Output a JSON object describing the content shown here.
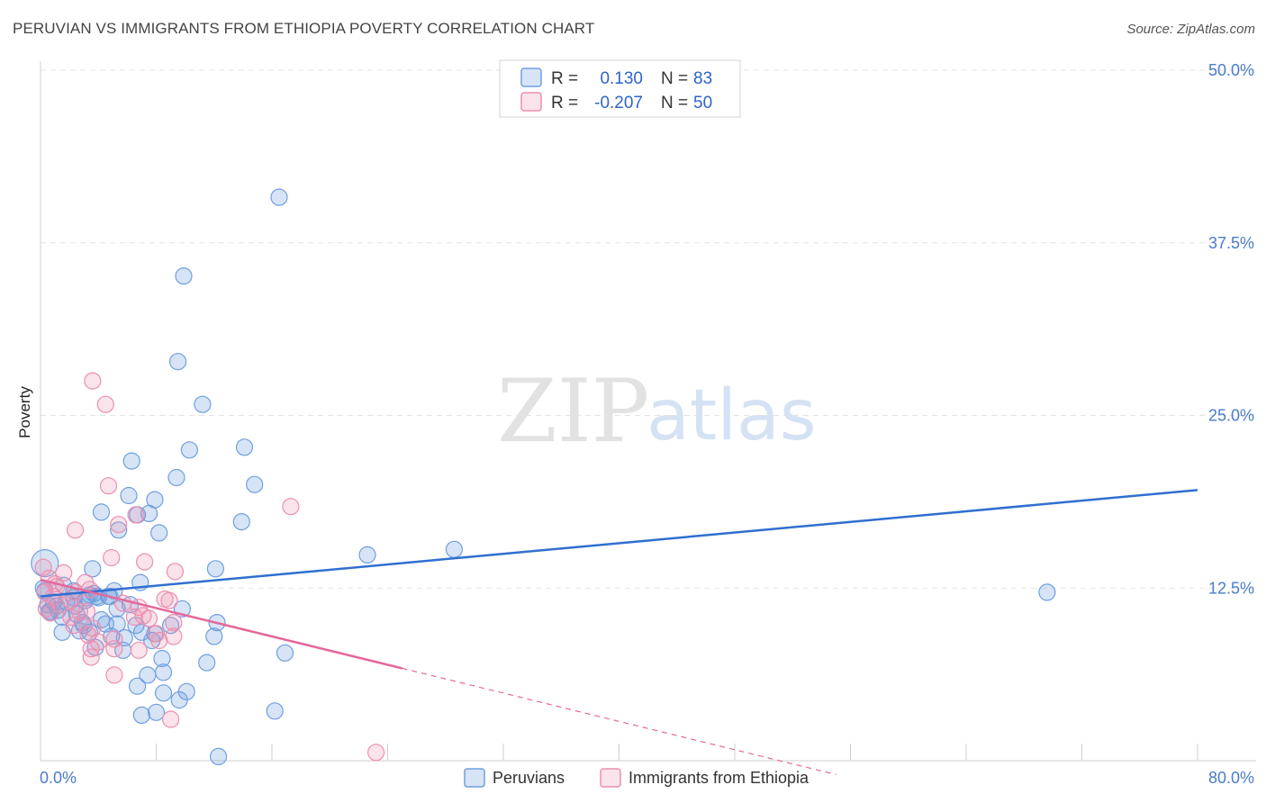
{
  "title": "PERUVIAN VS IMMIGRANTS FROM ETHIOPIA POVERTY CORRELATION CHART",
  "source": "Source: ZipAtlas.com",
  "watermark": {
    "part1": "ZIP",
    "part2": "atlas"
  },
  "colors": {
    "blue": "#6e9fe0",
    "blue_fill": "rgba(110,159,224,0.28)",
    "blue_line": "#2f6fd0",
    "pink": "#ec8fb0",
    "pink_fill": "rgba(236,143,176,0.25)",
    "pink_line": "#e5679a",
    "tick": "#4a7cc9",
    "grid": "#e3e3e3"
  },
  "legend": {
    "rows": [
      {
        "r_label": "R =",
        "r_value": "0.130",
        "n_label": "N =",
        "n_value": "83"
      },
      {
        "r_label": "R =",
        "r_value": "-0.207",
        "n_label": "N =",
        "n_value": "50"
      }
    ]
  },
  "bottom_legend": [
    "Peruvians",
    "Immigrants from Ethiopia"
  ],
  "chart_data": {
    "type": "scatter",
    "title": "PERUVIAN VS IMMIGRANTS FROM ETHIOPIA POVERTY CORRELATION CHART",
    "xlabel": "",
    "ylabel": "Poverty",
    "xlim": [
      0,
      80
    ],
    "ylim": [
      0,
      50
    ],
    "x_tick_labels": [
      "0.0%",
      "80.0%"
    ],
    "y_ticks": [
      12.5,
      25.0,
      37.5,
      50.0
    ],
    "y_tick_labels": [
      "12.5%",
      "25.0%",
      "37.5%",
      "50.0%"
    ],
    "grid": true,
    "series": [
      {
        "name": "Peruvians",
        "r": 0.13,
        "n": 83,
        "trend": {
          "x": [
            0,
            80
          ],
          "y": [
            11.9,
            19.6
          ],
          "dashed_from": null
        },
        "points": [
          [
            16.5,
            40.8
          ],
          [
            9.9,
            35.1
          ],
          [
            9.5,
            28.9
          ],
          [
            11.2,
            25.8
          ],
          [
            10.3,
            22.5
          ],
          [
            14.1,
            22.7
          ],
          [
            6.3,
            21.7
          ],
          [
            9.4,
            20.5
          ],
          [
            14.8,
            20.0
          ],
          [
            6.1,
            19.2
          ],
          [
            7.9,
            18.9
          ],
          [
            4.2,
            18.0
          ],
          [
            7.5,
            17.9
          ],
          [
            6.7,
            17.8
          ],
          [
            13.9,
            17.3
          ],
          [
            8.2,
            16.5
          ],
          [
            5.4,
            16.7
          ],
          [
            28.6,
            15.3
          ],
          [
            22.6,
            14.9
          ],
          [
            12.1,
            13.9
          ],
          [
            3.6,
            13.9
          ],
          [
            6.9,
            12.9
          ],
          [
            1.6,
            12.7
          ],
          [
            5.1,
            12.3
          ],
          [
            3.7,
            12.1
          ],
          [
            4.8,
            11.9
          ],
          [
            2.3,
            11.8
          ],
          [
            3.1,
            11.6
          ],
          [
            0.9,
            11.5
          ],
          [
            1.8,
            11.5
          ],
          [
            0.5,
            11.3
          ],
          [
            2.4,
            11.2
          ],
          [
            1.2,
            10.9
          ],
          [
            0.7,
            10.8
          ],
          [
            2.5,
            10.6
          ],
          [
            1.5,
            10.4
          ],
          [
            0.6,
            10.8
          ],
          [
            4.0,
            11.8
          ],
          [
            4.7,
            11.9
          ],
          [
            3.9,
            11.9
          ],
          [
            3.2,
            11.8
          ],
          [
            5.3,
            11.0
          ],
          [
            9.8,
            11.0
          ],
          [
            4.2,
            10.2
          ],
          [
            5.3,
            9.9
          ],
          [
            9.0,
            9.8
          ],
          [
            6.6,
            9.8
          ],
          [
            4.5,
            9.9
          ],
          [
            3.0,
            9.8
          ],
          [
            12.2,
            10.0
          ],
          [
            1.5,
            9.3
          ],
          [
            3.4,
            9.3
          ],
          [
            7.0,
            9.3
          ],
          [
            7.9,
            9.2
          ],
          [
            4.9,
            9.0
          ],
          [
            12.0,
            9.0
          ],
          [
            7.7,
            8.7
          ],
          [
            5.8,
            8.9
          ],
          [
            3.8,
            8.2
          ],
          [
            5.7,
            8.0
          ],
          [
            16.9,
            7.8
          ],
          [
            8.4,
            7.4
          ],
          [
            11.5,
            7.1
          ],
          [
            8.5,
            6.4
          ],
          [
            7.4,
            6.2
          ],
          [
            6.7,
            5.4
          ],
          [
            10.1,
            5.0
          ],
          [
            8.5,
            4.9
          ],
          [
            9.6,
            4.4
          ],
          [
            16.2,
            3.6
          ],
          [
            8.0,
            3.5
          ],
          [
            7.0,
            3.3
          ],
          [
            12.3,
            0.3
          ],
          [
            69.6,
            12.2
          ],
          [
            0.3,
            12.3
          ],
          [
            0.3,
            14.3
          ],
          [
            0.2,
            12.5
          ],
          [
            2.9,
            10.0
          ],
          [
            3.4,
            12.0
          ],
          [
            2.3,
            12.3
          ],
          [
            1.1,
            11.2
          ],
          [
            6.2,
            11.3
          ],
          [
            2.7,
            9.4
          ]
        ]
      },
      {
        "name": "Immigrants from Ethiopia",
        "r": -0.207,
        "n": 50,
        "trend": {
          "x": [
            0,
            55
          ],
          "y": [
            13.1,
            -1.0
          ],
          "dashed_from": 25
        },
        "points": [
          [
            3.6,
            27.5
          ],
          [
            4.5,
            25.8
          ],
          [
            4.7,
            19.9
          ],
          [
            17.3,
            18.4
          ],
          [
            6.6,
            17.8
          ],
          [
            5.4,
            17.1
          ],
          [
            2.4,
            16.7
          ],
          [
            4.9,
            14.7
          ],
          [
            7.2,
            14.4
          ],
          [
            9.3,
            13.7
          ],
          [
            1.6,
            13.6
          ],
          [
            0.6,
            13.2
          ],
          [
            3.1,
            12.9
          ],
          [
            3.4,
            12.4
          ],
          [
            1.1,
            12.6
          ],
          [
            2.4,
            12.2
          ],
          [
            0.9,
            11.9
          ],
          [
            2.1,
            11.6
          ],
          [
            8.9,
            11.6
          ],
          [
            5.7,
            11.4
          ],
          [
            1.4,
            11.3
          ],
          [
            6.8,
            11.1
          ],
          [
            0.4,
            11.0
          ],
          [
            2.7,
            10.8
          ],
          [
            3.2,
            10.8
          ],
          [
            0.7,
            10.7
          ],
          [
            7.1,
            10.5
          ],
          [
            2.1,
            10.4
          ],
          [
            6.5,
            10.4
          ],
          [
            7.5,
            10.3
          ],
          [
            9.2,
            10.0
          ],
          [
            2.3,
            9.8
          ],
          [
            3.6,
            9.6
          ],
          [
            8.0,
            9.2
          ],
          [
            3.3,
            9.1
          ],
          [
            9.2,
            9.0
          ],
          [
            5.1,
            8.8
          ],
          [
            4.0,
            8.6
          ],
          [
            8.2,
            8.7
          ],
          [
            3.5,
            8.1
          ],
          [
            6.8,
            8.0
          ],
          [
            5.1,
            8.1
          ],
          [
            3.5,
            7.5
          ],
          [
            5.1,
            6.2
          ],
          [
            9.0,
            3.0
          ],
          [
            23.2,
            0.6
          ],
          [
            0.2,
            14.0
          ],
          [
            1.0,
            12.8
          ],
          [
            0.3,
            12.2
          ],
          [
            8.6,
            11.7
          ]
        ]
      }
    ]
  }
}
